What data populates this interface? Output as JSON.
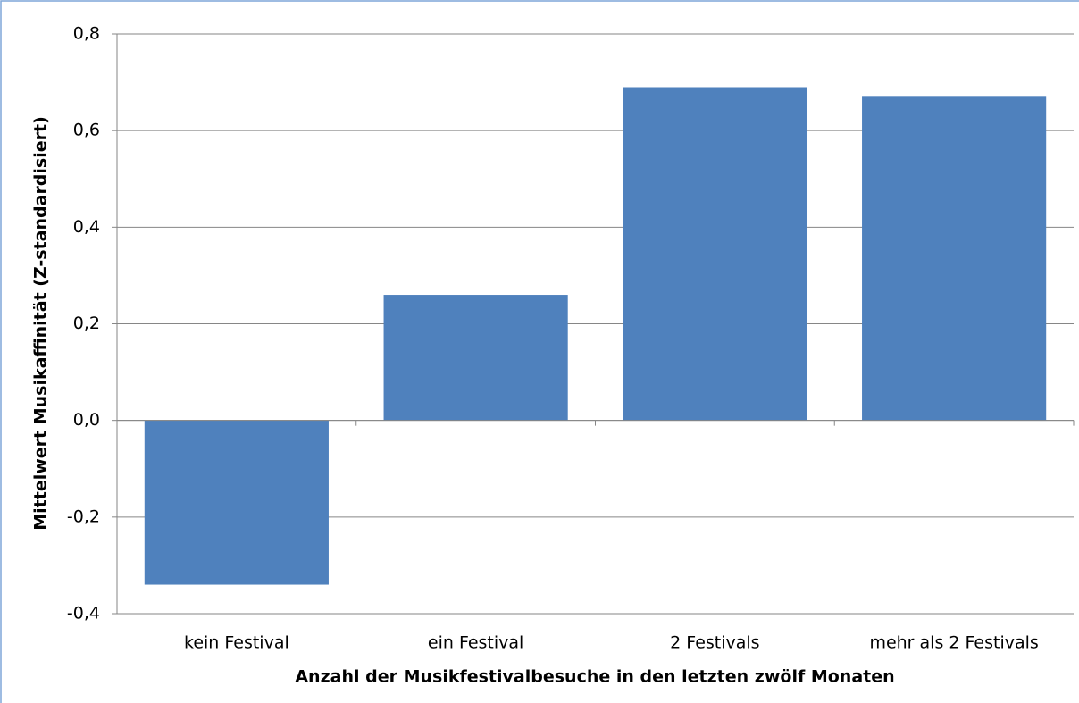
{
  "chart_data": {
    "type": "bar",
    "x_label": "Anzahl der Musikfestivalbesuche in den letzten zwölf Monaten",
    "y_label": "Mittelwert Musikaffinität (Z-standardisiert)",
    "categories": [
      "kein Festival",
      "ein Festival",
      "2 Festivals",
      "mehr als 2 Festivals"
    ],
    "values": [
      -0.34,
      0.26,
      0.69,
      0.67
    ],
    "color": "#4f81bd",
    "ylim": [
      -0.4,
      0.8
    ],
    "yticks": [
      {
        "value": -0.4,
        "label": "-0,4"
      },
      {
        "value": -0.2,
        "label": "-0,2"
      },
      {
        "value": 0,
        "label": "0,0"
      },
      {
        "value": 0.2,
        "label": "0,2"
      },
      {
        "value": 0.4,
        "label": "0,4"
      },
      {
        "value": 0.6,
        "label": "0,6"
      },
      {
        "value": 0.8,
        "label": "0,8"
      }
    ],
    "grid": true
  }
}
